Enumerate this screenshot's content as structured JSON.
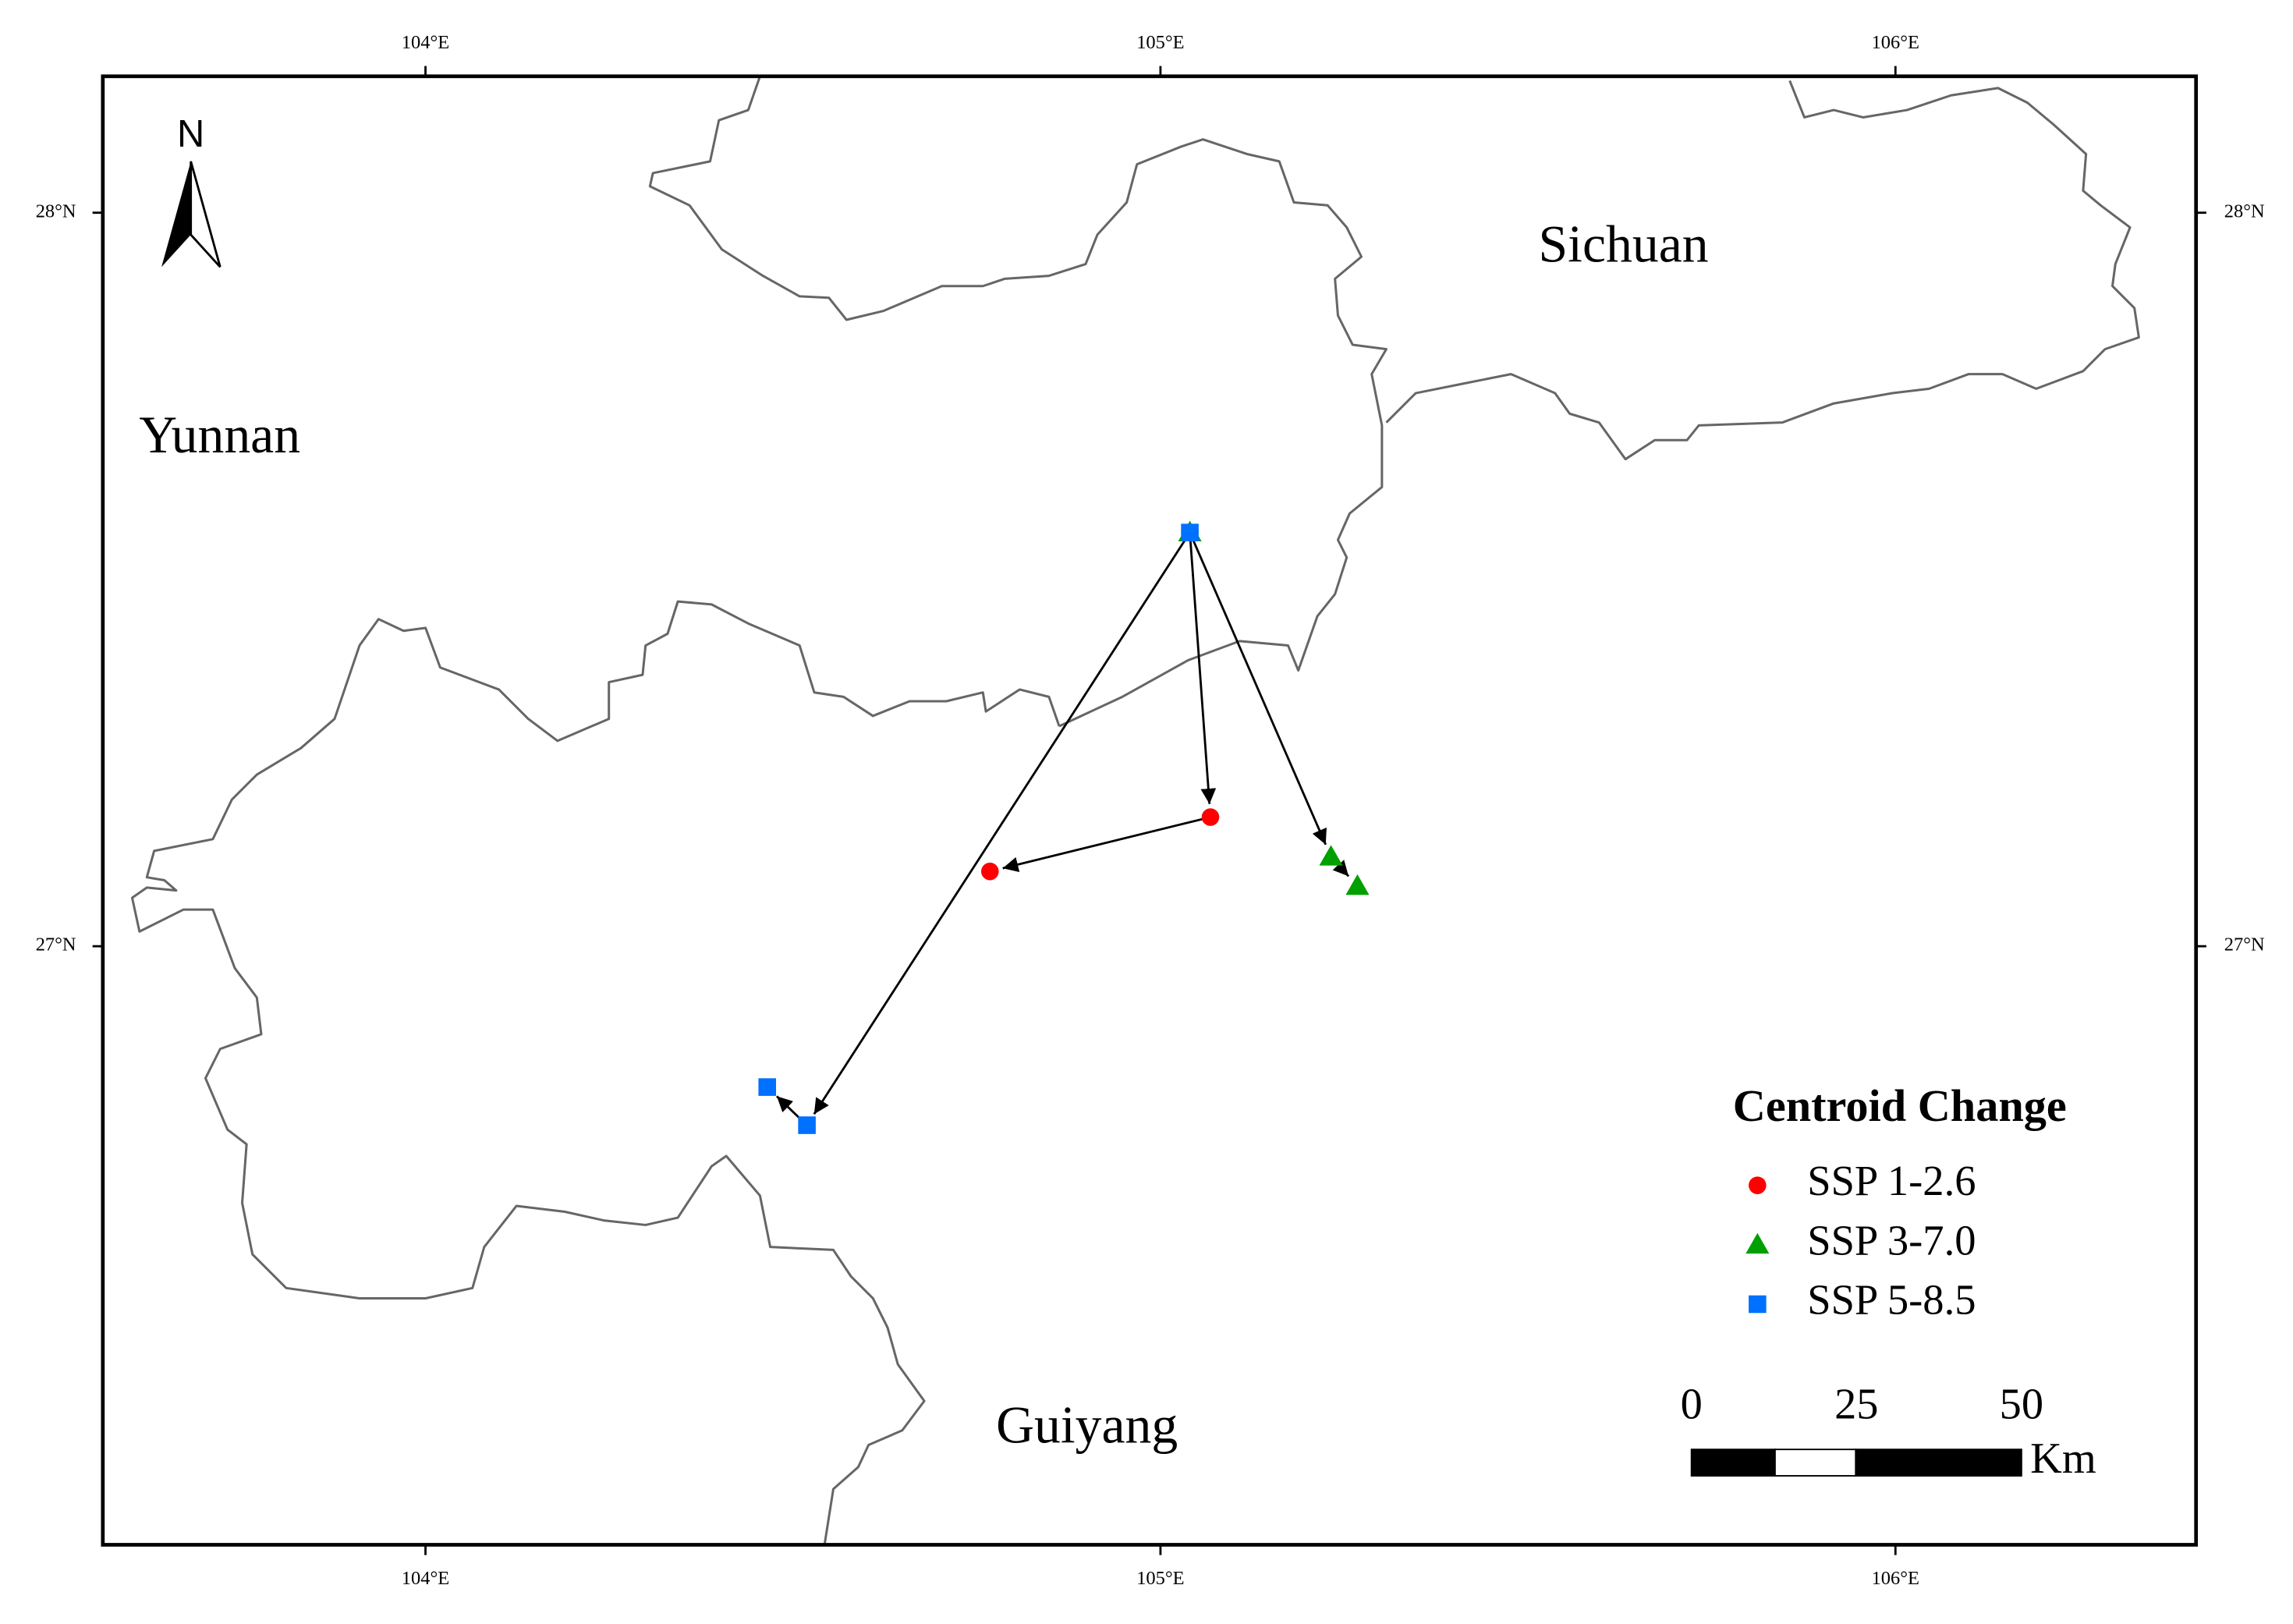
{
  "chart_data": {
    "type": "map",
    "xlim": [
      103.561,
      106.409
    ],
    "ylim": [
      26.184,
      28.186
    ],
    "xticks": [
      {
        "value": 104,
        "label": "104°E"
      },
      {
        "value": 105,
        "label": "105°E"
      },
      {
        "value": 106,
        "label": "106°E"
      }
    ],
    "yticks": [
      {
        "value": 27,
        "label": "27°N"
      },
      {
        "value": 28,
        "label": "28°N"
      }
    ],
    "north_label": "N",
    "regions": [
      {
        "label": "Sichuan",
        "x": 105.63,
        "y": 27.95
      },
      {
        "label": "Yunnan",
        "x": 103.72,
        "y": 27.69
      },
      {
        "label": "Guiyang",
        "x": 104.9,
        "y": 26.34
      }
    ],
    "legend_title": "Centroid Change",
    "series": [
      {
        "name": "SSP 1-2.6",
        "color": "#ff0000",
        "marker": "circle",
        "x": [
          105.04,
          105.068,
          104.768
        ],
        "values": [
          27.564,
          27.176,
          27.102
        ]
      },
      {
        "name": "SSP 3-7.0",
        "color": "#00a000",
        "marker": "triangle",
        "x": [
          105.04,
          105.232,
          105.268
        ],
        "values": [
          27.564,
          27.122,
          27.082
        ]
      },
      {
        "name": "SSP 5-8.5",
        "color": "#0070ff",
        "marker": "square",
        "x": [
          105.04,
          104.519,
          104.465
        ],
        "values": [
          27.564,
          26.756,
          26.808
        ]
      }
    ],
    "scale_bar": {
      "ticks": [
        0,
        25,
        50
      ],
      "unit": "Km"
    }
  }
}
